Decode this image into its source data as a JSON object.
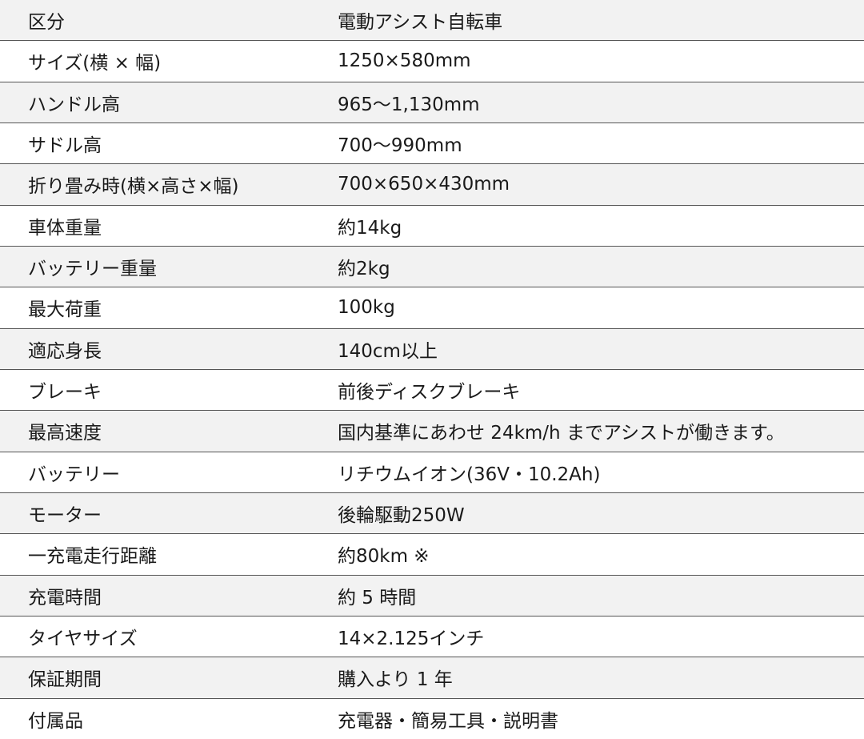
{
  "table": {
    "rows": [
      [
        "区分",
        "電動アシスト自転車"
      ],
      [
        "サイズ(横 × 幅)",
        "1250×580mm"
      ],
      [
        "ハンドル高",
        "965〜1,130mm"
      ],
      [
        "サドル高",
        "700〜990mm"
      ],
      [
        "折り畳み時(横×高さ×幅)",
        "700×650×430mm"
      ],
      [
        "車体重量",
        "約14kg"
      ],
      [
        "バッテリー重量",
        "約2kg"
      ],
      [
        "最大荷重",
        "100kg"
      ],
      [
        "適応身長",
        "140cm以上"
      ],
      [
        "ブレーキ",
        "前後ディスクブレーキ"
      ],
      [
        "最高速度",
        "国内基準にあわせ 24km/h までアシストが働きます。"
      ],
      [
        "バッテリー",
        "リチウムイオン(36V・10.2Ah)"
      ],
      [
        "モーター",
        "後輪駆動250W"
      ],
      [
        "一充電走行距離",
        "約80km ※"
      ],
      [
        "充電時間",
        "約 5 時間"
      ],
      [
        "タイヤサイズ",
        "14×2.125インチ"
      ],
      [
        "保証期間",
        "購入より 1 年"
      ],
      [
        "付属品",
        "充電器・簡易工具・説明書"
      ]
    ]
  }
}
